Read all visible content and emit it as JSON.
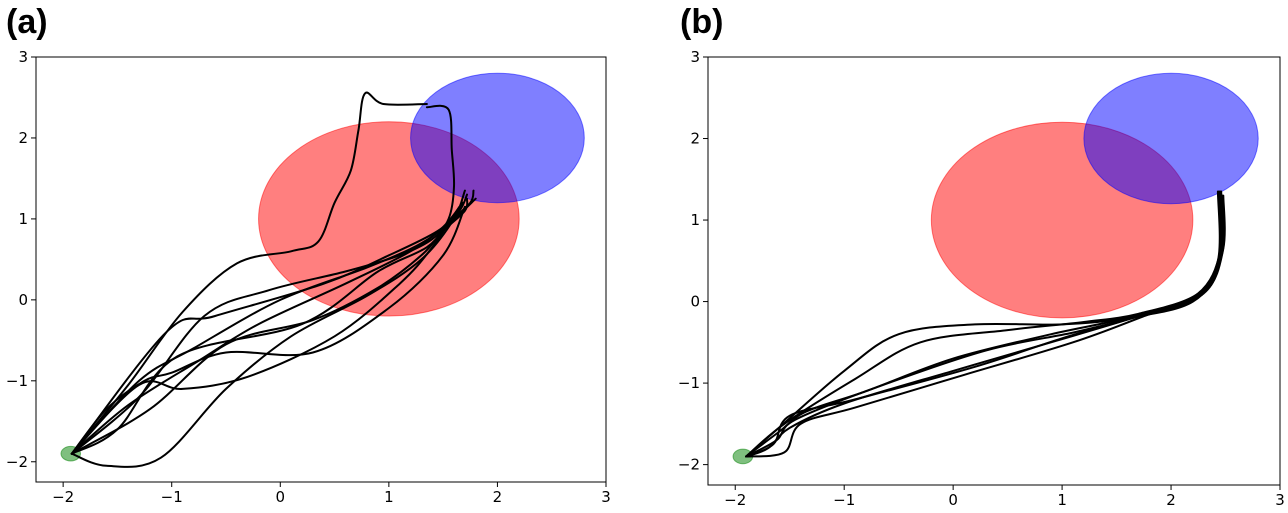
{
  "chart_data": [
    {
      "type": "line",
      "panel_label": "(a)",
      "xlim": [
        -2.25,
        3.0
      ],
      "ylim": [
        -2.25,
        3.0
      ],
      "xticks": [
        -2,
        -1,
        0,
        1,
        2,
        3
      ],
      "yticks": [
        -2,
        -1,
        0,
        1,
        2,
        3
      ],
      "xtick_labels": [
        "−2",
        "−1",
        "0",
        "1",
        "2",
        "3"
      ],
      "ytick_labels": [
        "−2",
        "−1",
        "0",
        "1",
        "2",
        "3"
      ],
      "grid": false,
      "circles": [
        {
          "role": "obstacle",
          "cx": 1.0,
          "cy": 1.0,
          "r": 1.2,
          "color": "#ff0000",
          "alpha": 0.5
        },
        {
          "role": "goal",
          "cx": 2.0,
          "cy": 2.0,
          "r": 0.8,
          "color": "#0000ff",
          "alpha": 0.5
        },
        {
          "role": "start",
          "cx": -1.93,
          "cy": -1.9,
          "r": 0.09,
          "color": "#008000",
          "alpha": 0.5
        }
      ],
      "series": [
        {
          "values": [
            [
              -1.92,
              -1.9
            ],
            [
              -1.4,
              -1.05
            ],
            [
              -0.9,
              -0.15
            ],
            [
              -0.4,
              0.45
            ],
            [
              0.1,
              0.6
            ],
            [
              0.35,
              0.72
            ],
            [
              0.5,
              1.2
            ],
            [
              0.65,
              1.6
            ],
            [
              0.72,
              2.1
            ],
            [
              0.78,
              2.55
            ],
            [
              0.95,
              2.42
            ],
            [
              1.35,
              2.42
            ]
          ]
        },
        {
          "values": [
            [
              -1.92,
              -1.9
            ],
            [
              -1.3,
              -1.2
            ],
            [
              -0.7,
              -0.2
            ],
            [
              -0.1,
              0.12
            ],
            [
              0.6,
              0.35
            ],
            [
              1.1,
              0.55
            ],
            [
              1.4,
              0.75
            ],
            [
              1.55,
              1.0
            ],
            [
              1.6,
              1.4
            ],
            [
              1.58,
              1.85
            ],
            [
              1.55,
              2.35
            ],
            [
              1.35,
              2.38
            ]
          ]
        },
        {
          "values": [
            [
              -1.92,
              -1.9
            ],
            [
              -1.2,
              -1.35
            ],
            [
              -0.5,
              -0.55
            ],
            [
              0.3,
              -0.25
            ],
            [
              0.9,
              0.15
            ],
            [
              1.3,
              0.55
            ],
            [
              1.5,
              0.85
            ],
            [
              1.7,
              1.1
            ],
            [
              1.72,
              1.25
            ]
          ]
        },
        {
          "values": [
            [
              -1.92,
              -1.9
            ],
            [
              -1.3,
              -1.0
            ],
            [
              -0.8,
              -0.6
            ],
            [
              0.0,
              0.0
            ],
            [
              0.8,
              0.4
            ],
            [
              1.3,
              0.7
            ],
            [
              1.6,
              1.0
            ],
            [
              1.8,
              1.25
            ]
          ]
        },
        {
          "values": [
            [
              -1.92,
              -1.9
            ],
            [
              -1.05,
              -0.4
            ],
            [
              -0.6,
              -0.2
            ],
            [
              0.4,
              0.2
            ],
            [
              1.0,
              0.55
            ],
            [
              1.45,
              0.85
            ],
            [
              1.65,
              1.1
            ],
            [
              1.72,
              1.3
            ]
          ]
        },
        {
          "values": [
            [
              -1.92,
              -1.9
            ],
            [
              -1.3,
              -1.05
            ],
            [
              -0.9,
              -1.1
            ],
            [
              -0.3,
              -0.95
            ],
            [
              0.5,
              -0.45
            ],
            [
              1.1,
              0.2
            ],
            [
              1.4,
              0.65
            ],
            [
              1.65,
              1.15
            ]
          ]
        },
        {
          "values": [
            [
              -1.92,
              -1.9
            ],
            [
              -1.6,
              -2.05
            ],
            [
              -1.1,
              -1.95
            ],
            [
              -0.5,
              -1.1
            ],
            [
              0.1,
              -0.45
            ],
            [
              0.8,
              0.05
            ],
            [
              1.3,
              0.5
            ],
            [
              1.6,
              1.0
            ],
            [
              1.7,
              1.35
            ]
          ]
        },
        {
          "values": [
            [
              -1.92,
              -1.9
            ],
            [
              -1.6,
              -1.35
            ],
            [
              -1.25,
              -1.0
            ],
            [
              -1.0,
              -0.9
            ],
            [
              -0.5,
              -0.65
            ],
            [
              0.3,
              -0.65
            ],
            [
              1.0,
              -0.1
            ],
            [
              1.5,
              0.55
            ],
            [
              1.7,
              1.15
            ]
          ]
        },
        {
          "values": [
            [
              -1.92,
              -1.9
            ],
            [
              -1.5,
              -1.6
            ],
            [
              -0.95,
              -0.7
            ],
            [
              0.2,
              -0.3
            ],
            [
              0.9,
              0.35
            ],
            [
              1.35,
              0.65
            ],
            [
              1.55,
              0.95
            ],
            [
              1.75,
              1.2
            ],
            [
              1.78,
              1.35
            ]
          ]
        },
        {
          "values": [
            [
              -1.92,
              -1.9
            ],
            [
              -1.4,
              -1.3
            ],
            [
              -0.75,
              -0.75
            ],
            [
              -0.2,
              -0.3
            ],
            [
              0.6,
              0.2
            ],
            [
              1.2,
              0.6
            ],
            [
              1.5,
              0.9
            ],
            [
              1.68,
              1.2
            ]
          ]
        }
      ]
    },
    {
      "type": "line",
      "panel_label": "(b)",
      "xlim": [
        -2.25,
        3.0
      ],
      "ylim": [
        -2.25,
        3.0
      ],
      "xticks": [
        -2,
        -1,
        0,
        1,
        2,
        3
      ],
      "yticks": [
        -2,
        -1,
        0,
        1,
        2,
        3
      ],
      "xtick_labels": [
        "−2",
        "−1",
        "0",
        "1",
        "2",
        "3"
      ],
      "ytick_labels": [
        "−2",
        "−1",
        "0",
        "1",
        "2",
        "3"
      ],
      "grid": false,
      "circles": [
        {
          "role": "obstacle",
          "cx": 1.0,
          "cy": 1.0,
          "r": 1.2,
          "color": "#ff0000",
          "alpha": 0.5
        },
        {
          "role": "goal",
          "cx": 2.0,
          "cy": 2.0,
          "r": 0.8,
          "color": "#0000ff",
          "alpha": 0.5
        },
        {
          "role": "start",
          "cx": -1.93,
          "cy": -1.9,
          "r": 0.09,
          "color": "#008000",
          "alpha": 0.5
        }
      ],
      "series": [
        {
          "values": [
            [
              -1.9,
              -1.9
            ],
            [
              -1.6,
              -1.55
            ],
            [
              -1.0,
              -0.85
            ],
            [
              -0.5,
              -0.4
            ],
            [
              0.2,
              -0.28
            ],
            [
              1.0,
              -0.28
            ],
            [
              1.6,
              -0.2
            ],
            [
              2.2,
              0.0
            ],
            [
              2.45,
              0.5
            ],
            [
              2.45,
              1.35
            ]
          ]
        },
        {
          "values": [
            [
              -1.9,
              -1.9
            ],
            [
              -1.55,
              -1.5
            ],
            [
              -0.9,
              -0.95
            ],
            [
              -0.3,
              -0.5
            ],
            [
              0.5,
              -0.35
            ],
            [
              1.2,
              -0.25
            ],
            [
              1.7,
              -0.15
            ],
            [
              2.25,
              0.1
            ],
            [
              2.46,
              0.6
            ],
            [
              2.46,
              1.35
            ]
          ]
        },
        {
          "values": [
            [
              -1.9,
              -1.9
            ],
            [
              -1.6,
              -1.6
            ],
            [
              -1.35,
              -1.35
            ],
            [
              -0.8,
              -1.1
            ],
            [
              0.0,
              -0.7
            ],
            [
              0.9,
              -0.4
            ],
            [
              1.6,
              -0.2
            ],
            [
              2.2,
              0.05
            ],
            [
              2.44,
              0.55
            ],
            [
              2.44,
              1.35
            ]
          ]
        },
        {
          "values": [
            [
              -1.9,
              -1.9
            ],
            [
              -1.65,
              -1.75
            ],
            [
              -1.5,
              -1.4
            ],
            [
              -0.9,
              -1.2
            ],
            [
              0.2,
              -0.8
            ],
            [
              1.0,
              -0.45
            ],
            [
              1.7,
              -0.18
            ],
            [
              2.25,
              0.08
            ],
            [
              2.47,
              0.6
            ],
            [
              2.47,
              1.3
            ]
          ]
        },
        {
          "values": [
            [
              -1.9,
              -1.9
            ],
            [
              -1.55,
              -1.85
            ],
            [
              -1.4,
              -1.5
            ],
            [
              -0.9,
              -1.3
            ],
            [
              0.1,
              -0.9
            ],
            [
              1.1,
              -0.5
            ],
            [
              1.75,
              -0.18
            ],
            [
              2.3,
              0.1
            ],
            [
              2.48,
              0.65
            ],
            [
              2.48,
              1.3
            ]
          ]
        },
        {
          "values": [
            [
              -1.9,
              -1.9
            ],
            [
              -1.62,
              -1.7
            ],
            [
              -1.45,
              -1.45
            ],
            [
              -0.7,
              -1.05
            ],
            [
              0.3,
              -0.6
            ],
            [
              1.1,
              -0.38
            ],
            [
              1.65,
              -0.2
            ],
            [
              2.2,
              0.02
            ],
            [
              2.43,
              0.5
            ],
            [
              2.43,
              1.35
            ]
          ]
        },
        {
          "values": [
            [
              -1.9,
              -1.9
            ],
            [
              -1.7,
              -1.8
            ],
            [
              -1.5,
              -1.55
            ],
            [
              -1.0,
              -1.25
            ],
            [
              0.0,
              -0.85
            ],
            [
              0.95,
              -0.48
            ],
            [
              1.7,
              -0.18
            ],
            [
              2.28,
              0.08
            ],
            [
              2.46,
              0.58
            ],
            [
              2.46,
              1.32
            ]
          ]
        }
      ]
    }
  ]
}
